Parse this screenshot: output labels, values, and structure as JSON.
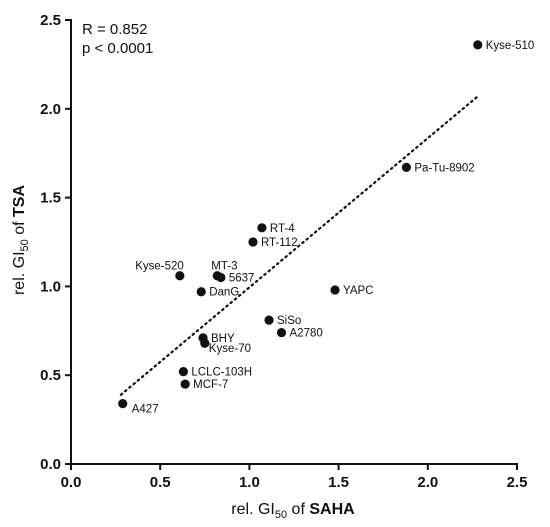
{
  "chart_data": {
    "type": "scatter",
    "annotations": {
      "r": "R = 0.852",
      "p": "p < 0.0001"
    },
    "xlabel": {
      "prefix": "rel. GI",
      "sub": "50",
      "mid": " of ",
      "bold": "SAHA"
    },
    "ylabel": {
      "prefix": "rel. GI",
      "sub": "50",
      "mid": " of ",
      "bold": "TSA"
    },
    "xlim": [
      0.0,
      2.5
    ],
    "ylim": [
      0.0,
      2.5
    ],
    "xticks": [
      "0.0",
      "0.5",
      "1.0",
      "1.5",
      "2.0",
      "2.5"
    ],
    "yticks": [
      "0.0",
      "0.5",
      "1.0",
      "1.5",
      "2.0",
      "2.5"
    ],
    "trendline": {
      "style": "dotted",
      "x": [
        0.28,
        2.28
      ],
      "y": [
        0.39,
        2.07
      ]
    },
    "points": [
      {
        "label": "Kyse-510",
        "x": 2.28,
        "y": 2.36,
        "pos": "right"
      },
      {
        "label": "Pa-Tu-8902",
        "x": 1.88,
        "y": 1.67,
        "pos": "right"
      },
      {
        "label": "RT-4",
        "x": 1.07,
        "y": 1.33,
        "pos": "right"
      },
      {
        "label": "RT-112",
        "x": 1.02,
        "y": 1.25,
        "pos": "right"
      },
      {
        "label": "Kyse-520",
        "x": 0.61,
        "y": 1.06,
        "pos": "above-left"
      },
      {
        "label": "MT-3",
        "x": 0.82,
        "y": 1.06,
        "pos": "above"
      },
      {
        "label": "5637",
        "x": 0.84,
        "y": 1.05,
        "pos": "right"
      },
      {
        "label": "DanG",
        "x": 0.73,
        "y": 0.97,
        "pos": "right"
      },
      {
        "label": "YAPC",
        "x": 1.48,
        "y": 0.98,
        "pos": "right"
      },
      {
        "label": "SiSo",
        "x": 1.11,
        "y": 0.81,
        "pos": "right"
      },
      {
        "label": "A2780",
        "x": 1.18,
        "y": 0.74,
        "pos": "right"
      },
      {
        "label": "BHY",
        "x": 0.74,
        "y": 0.71,
        "pos": "right"
      },
      {
        "label": "Kyse-70",
        "x": 0.75,
        "y": 0.68,
        "pos": "below-right"
      },
      {
        "label": "LCLC-103H",
        "x": 0.63,
        "y": 0.52,
        "pos": "right"
      },
      {
        "label": "MCF-7",
        "x": 0.64,
        "y": 0.45,
        "pos": "right"
      },
      {
        "label": "A427",
        "x": 0.29,
        "y": 0.34,
        "pos": "right-below"
      }
    ]
  }
}
